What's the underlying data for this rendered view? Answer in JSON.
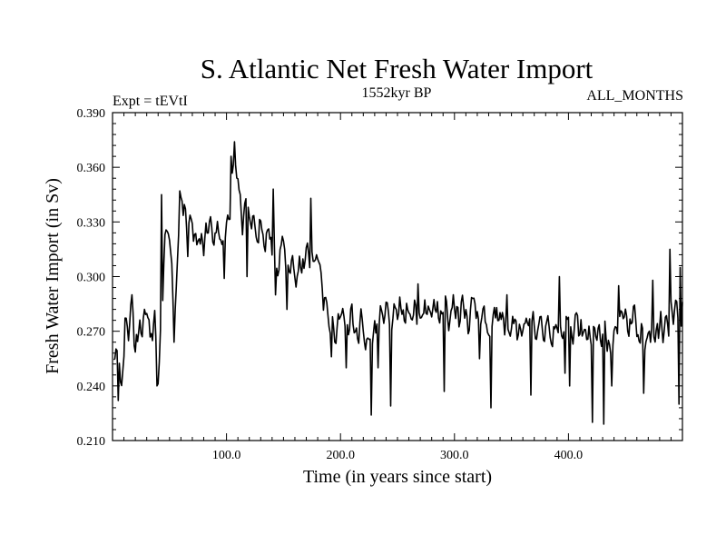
{
  "chart_data": {
    "type": "line",
    "title": "S. Atlantic Net Fresh Water Import",
    "subtitle_left": "Expt = tEVtI",
    "subtitle_center": "1552kyr BP",
    "subtitle_right": "ALL_MONTHS",
    "xlabel": "Time (in years since start)",
    "ylabel": "Fresh Water Import (in Sv)",
    "xlim": [
      0,
      500
    ],
    "ylim": [
      0.21,
      0.39
    ],
    "x_ticks": [
      100,
      200,
      300,
      400
    ],
    "x_tick_labels": [
      "100.0",
      "200.0",
      "300.0",
      "400.0"
    ],
    "y_ticks": [
      0.21,
      0.24,
      0.27,
      0.3,
      0.33,
      0.36,
      0.39
    ],
    "y_tick_labels": [
      "0.210",
      "0.240",
      "0.270",
      "0.300",
      "0.330",
      "0.360",
      "0.390"
    ],
    "series": [
      {
        "name": "S. Atlantic net fresh water import",
        "x_start": 1,
        "x_step": 1,
        "anchors": [
          [
            0,
            0.252
          ],
          [
            3,
            0.27
          ],
          [
            6,
            0.258
          ],
          [
            8,
            0.238
          ],
          [
            11,
            0.272
          ],
          [
            14,
            0.262
          ],
          [
            17,
            0.282
          ],
          [
            20,
            0.255
          ],
          [
            23,
            0.27
          ],
          [
            26,
            0.265
          ],
          [
            30,
            0.283
          ],
          [
            33,
            0.262
          ],
          [
            37,
            0.276
          ],
          [
            40,
            0.248
          ],
          [
            42,
            0.262
          ],
          [
            44,
            0.286
          ],
          [
            46,
            0.318
          ],
          [
            48,
            0.334
          ],
          [
            50,
            0.322
          ],
          [
            52,
            0.3
          ],
          [
            54,
            0.27
          ],
          [
            56,
            0.298
          ],
          [
            58,
            0.325
          ],
          [
            61,
            0.34
          ],
          [
            64,
            0.332
          ],
          [
            67,
            0.322
          ],
          [
            70,
            0.331
          ],
          [
            73,
            0.316
          ],
          [
            76,
            0.327
          ],
          [
            80,
            0.315
          ],
          [
            84,
            0.328
          ],
          [
            88,
            0.32
          ],
          [
            92,
            0.33
          ],
          [
            96,
            0.317
          ],
          [
            100,
            0.322
          ],
          [
            103,
            0.341
          ],
          [
            106,
            0.357
          ],
          [
            108,
            0.363
          ],
          [
            110,
            0.346
          ],
          [
            113,
            0.338
          ],
          [
            116,
            0.33
          ],
          [
            119,
            0.337
          ],
          [
            122,
            0.321
          ],
          [
            125,
            0.333
          ],
          [
            128,
            0.321
          ],
          [
            131,
            0.329
          ],
          [
            134,
            0.313
          ],
          [
            137,
            0.326
          ],
          [
            140,
            0.312
          ],
          [
            143,
            0.316
          ],
          [
            146,
            0.304
          ],
          [
            150,
            0.318
          ],
          [
            153,
            0.3
          ],
          [
            156,
            0.312
          ],
          [
            160,
            0.298
          ],
          [
            164,
            0.308
          ],
          [
            168,
            0.301
          ],
          [
            172,
            0.314
          ],
          [
            176,
            0.302
          ],
          [
            180,
            0.308
          ],
          [
            184,
            0.292
          ],
          [
            188,
            0.282
          ],
          [
            192,
            0.272
          ],
          [
            196,
            0.268
          ],
          [
            200,
            0.276
          ],
          [
            205,
            0.274
          ],
          [
            210,
            0.28
          ],
          [
            215,
            0.27
          ],
          [
            220,
            0.275
          ],
          [
            225,
            0.263
          ],
          [
            230,
            0.27
          ],
          [
            240,
            0.281
          ],
          [
            250,
            0.278
          ],
          [
            260,
            0.285
          ],
          [
            270,
            0.279
          ],
          [
            280,
            0.282
          ],
          [
            290,
            0.276
          ],
          [
            300,
            0.284
          ],
          [
            310,
            0.277
          ],
          [
            320,
            0.282
          ],
          [
            330,
            0.273
          ],
          [
            340,
            0.278
          ],
          [
            350,
            0.27
          ],
          [
            360,
            0.275
          ],
          [
            370,
            0.268
          ],
          [
            380,
            0.272
          ],
          [
            390,
            0.269
          ],
          [
            400,
            0.274
          ],
          [
            410,
            0.268
          ],
          [
            420,
            0.265
          ],
          [
            430,
            0.27
          ],
          [
            440,
            0.266
          ],
          [
            450,
            0.275
          ],
          [
            460,
            0.272
          ],
          [
            470,
            0.266
          ],
          [
            480,
            0.272
          ],
          [
            490,
            0.276
          ],
          [
            500,
            0.284
          ]
        ],
        "noise_amplitude": 0.0125,
        "spikes": [
          [
            5,
            0.232
          ],
          [
            17,
            0.29
          ],
          [
            39,
            0.24
          ],
          [
            43,
            0.345
          ],
          [
            54,
            0.264
          ],
          [
            59,
            0.347
          ],
          [
            66,
            0.311
          ],
          [
            98,
            0.299
          ],
          [
            104,
            0.366
          ],
          [
            107,
            0.374
          ],
          [
            118,
            0.3
          ],
          [
            141,
            0.348
          ],
          [
            143,
            0.29
          ],
          [
            153,
            0.282
          ],
          [
            174,
            0.343
          ],
          [
            192,
            0.256
          ],
          [
            205,
            0.25
          ],
          [
            227,
            0.224
          ],
          [
            233,
            0.25
          ],
          [
            244,
            0.229
          ],
          [
            268,
            0.296
          ],
          [
            291,
            0.237
          ],
          [
            299,
            0.29
          ],
          [
            322,
            0.255
          ],
          [
            332,
            0.228
          ],
          [
            346,
            0.29
          ],
          [
            367,
            0.235
          ],
          [
            392,
            0.3
          ],
          [
            397,
            0.247
          ],
          [
            401,
            0.24
          ],
          [
            421,
            0.22
          ],
          [
            431,
            0.219
          ],
          [
            438,
            0.24
          ],
          [
            444,
            0.295
          ],
          [
            466,
            0.236
          ],
          [
            474,
            0.298
          ],
          [
            489,
            0.315
          ],
          [
            497,
            0.23
          ],
          [
            498,
            0.305
          ]
        ]
      }
    ]
  }
}
